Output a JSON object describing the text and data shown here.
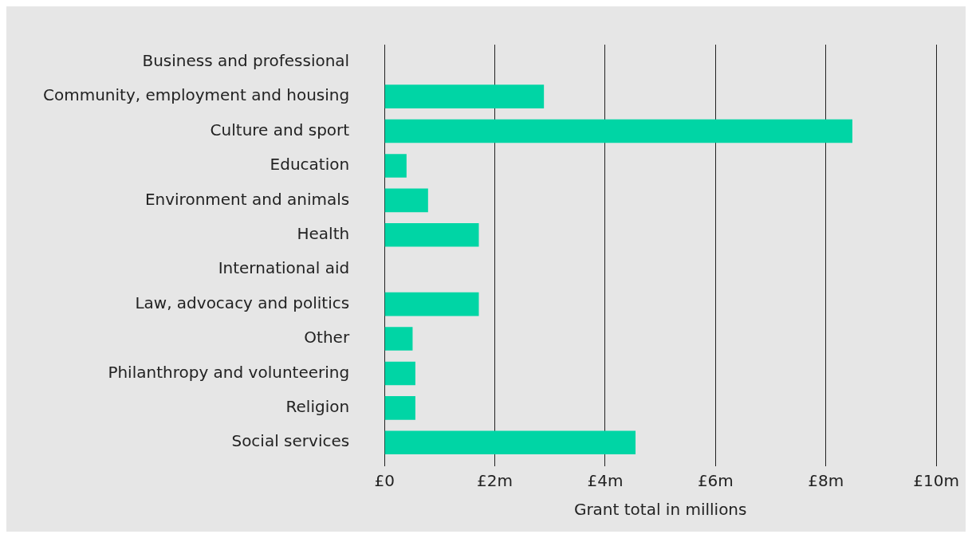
{
  "chart_data": {
    "type": "bar",
    "orientation": "horizontal",
    "xlabel": "Grant total in millions",
    "categories": [
      "Business and professional",
      "Community, employment and housing",
      "Culture and sport",
      "Education",
      "Environment and animals",
      "Health",
      "International aid",
      "Law, advocacy and politics",
      "Other",
      "Philanthropy and volunteering",
      "Religion",
      "Social services"
    ],
    "values": [
      0,
      2.89,
      8.48,
      0.4,
      0.79,
      1.71,
      0,
      1.71,
      0.51,
      0.56,
      0.56,
      4.55
    ],
    "color": "#00d5a5",
    "xlim": [
      0,
      10
    ],
    "xticks": [
      {
        "value": 0,
        "label": "£0"
      },
      {
        "value": 2,
        "label": "£2m"
      },
      {
        "value": 4,
        "label": "£4m"
      },
      {
        "value": 6,
        "label": "£6m"
      },
      {
        "value": 8,
        "label": "£8m"
      },
      {
        "value": 10,
        "label": "£10m"
      }
    ],
    "grid": "x",
    "legend": false
  }
}
